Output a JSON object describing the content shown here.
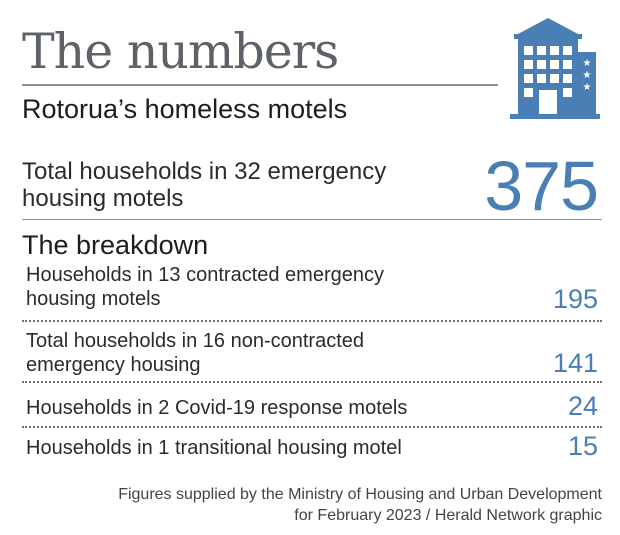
{
  "header": {
    "title": "The numbers",
    "subtitle": "Rotorua’s homeless motels",
    "icon": "hotel-building-icon",
    "accent_color": "#4a7fb5"
  },
  "total": {
    "label": "Total households in 32 emergency housing motels",
    "value": "375"
  },
  "breakdown": {
    "title": "The breakdown",
    "rows": [
      {
        "label": "Households in 13 contracted emergency housing motels",
        "value": "195"
      },
      {
        "label": "Total households in 16 non-contracted emergency housing",
        "value": "141"
      },
      {
        "label": "Households in 2 Covid-19 response motels",
        "value": "24"
      },
      {
        "label": "Households in 1 transitional housing motel",
        "value": "15"
      }
    ]
  },
  "source": "Figures supplied by the Ministry of Housing and Urban Development for February 2023 / Herald Network graphic"
}
